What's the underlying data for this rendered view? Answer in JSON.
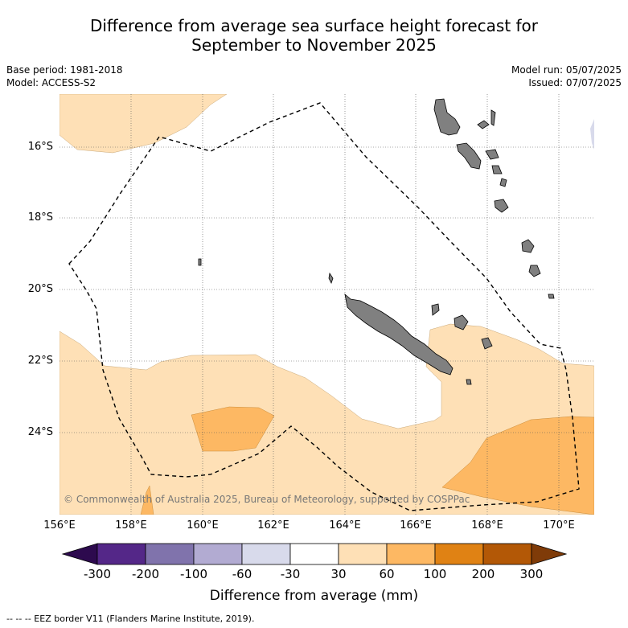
{
  "title_line1": "Difference from average sea surface height forecast for",
  "title_line2": "September to November 2025",
  "meta_left": [
    "Base period: 1981-2018",
    "Model: ACCESS-S2"
  ],
  "meta_right": [
    "Model run: 05/07/2025",
    "Issued: 07/07/2025"
  ],
  "lat_labels": [
    "16°S",
    "18°S",
    "20°S",
    "22°S",
    "24°S"
  ],
  "lon_labels": [
    "156°E",
    "158°E",
    "160°E",
    "162°E",
    "164°E",
    "166°E",
    "168°E",
    "170°E"
  ],
  "copyright": "© Commonwealth of Australia 2025, Bureau of Meteorology, supported by COSPPac",
  "colorbar": {
    "title": "Difference from average (mm)",
    "tick_labels": [
      "-300",
      "-200",
      "-100",
      "-60",
      "-30",
      "30",
      "60",
      "100",
      "200",
      "300"
    ],
    "under_color": "#2d0a4e",
    "over_color": "#7f3b08",
    "colors": [
      "#542788",
      "#8073ac",
      "#b2abd2",
      "#d8daeb",
      "#ffffff",
      "#fee0b6",
      "#fdb863",
      "#e08214",
      "#b35806"
    ]
  },
  "footer": "--  --  -- EEZ border V11 (Flanders Marine Institute, 2019).",
  "colors": {
    "land": "#808080",
    "light_orange": "#fee0b6",
    "mid_orange": "#fdb863"
  }
}
